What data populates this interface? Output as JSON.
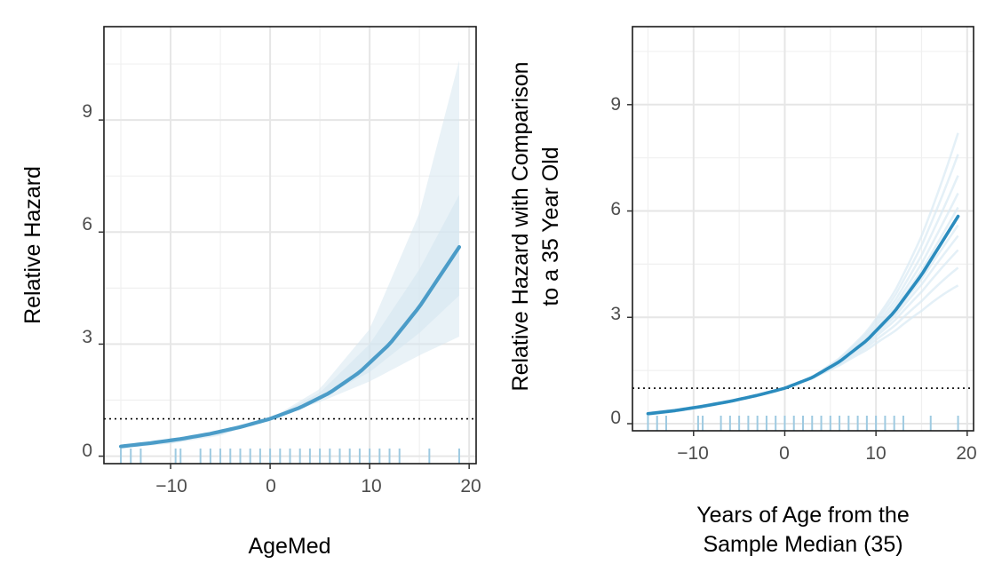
{
  "chart_data": [
    {
      "type": "line",
      "title": "",
      "xlabel": "AgeMed",
      "ylabel": "Relative Hazard",
      "xlim": [
        -16.7,
        20.7
      ],
      "ylim": [
        -0.2,
        11.5
      ],
      "xticks": [
        -10,
        0,
        10,
        20
      ],
      "yticks": [
        0,
        3,
        6,
        9
      ],
      "xtick_labels": [
        "−10",
        "0",
        "10",
        "20"
      ],
      "ytick_labels": [
        "0",
        "3",
        "6",
        "9"
      ],
      "reference_line": {
        "y": 1,
        "style": "dotted"
      },
      "grid": true,
      "series": [
        {
          "x": [
            -15,
            -12,
            -9,
            -6,
            -3,
            0,
            3,
            6,
            9,
            12,
            15,
            19
          ],
          "values": [
            0.26,
            0.35,
            0.46,
            0.6,
            0.78,
            1.0,
            1.3,
            1.7,
            2.25,
            3.0,
            4.0,
            5.6
          ]
        }
      ],
      "confidence_bands": [
        {
          "x": [
            -15,
            -10,
            -5,
            0,
            5,
            10,
            15,
            19
          ],
          "lower": [
            0.22,
            0.33,
            0.55,
            1.0,
            1.45,
            2.0,
            2.7,
            3.2
          ],
          "upper": [
            0.3,
            0.44,
            0.69,
            1.0,
            1.8,
            3.4,
            6.5,
            10.6
          ]
        },
        {
          "x": [
            -15,
            -10,
            -5,
            0,
            5,
            10,
            15,
            19
          ],
          "lower": [
            0.24,
            0.35,
            0.58,
            1.0,
            1.55,
            2.25,
            3.3,
            4.3
          ],
          "upper": [
            0.28,
            0.41,
            0.65,
            1.0,
            1.7,
            3.0,
            5.0,
            7.0
          ]
        }
      ],
      "rug": [
        -15,
        -14,
        -13,
        -9.5,
        -9,
        -7,
        -6,
        -5,
        -4,
        -3,
        -2,
        -1,
        0,
        1,
        2,
        3,
        4,
        5,
        6,
        7,
        8,
        9,
        10,
        11,
        12,
        13,
        16,
        19
      ],
      "colors": {
        "line": "#4b9cc8",
        "band": "#d3e6f0",
        "rug": "#9ecae1",
        "reference": "#000000"
      }
    },
    {
      "type": "line",
      "title": "",
      "xlabel": [
        "Years of Age from the",
        "Sample Median (35)"
      ],
      "ylabel": [
        "Relative Hazard with Comparison",
        "to a 35 Year Old"
      ],
      "xlim": [
        -16.7,
        20.7
      ],
      "ylim": [
        -0.2,
        11.2
      ],
      "xticks": [
        -10,
        0,
        10,
        20
      ],
      "yticks": [
        0,
        3,
        6,
        9
      ],
      "xtick_labels": [
        "−10",
        "0",
        "10",
        "20"
      ],
      "ytick_labels": [
        "0",
        "3",
        "6",
        "9"
      ],
      "reference_line": {
        "y": 1,
        "style": "dotted"
      },
      "grid": true,
      "series": [
        {
          "x": [
            -15,
            -12,
            -9,
            -6,
            -3,
            0,
            3,
            6,
            9,
            12,
            15,
            19
          ],
          "values": [
            0.28,
            0.37,
            0.49,
            0.63,
            0.8,
            1.0,
            1.3,
            1.75,
            2.35,
            3.15,
            4.2,
            5.85
          ]
        }
      ],
      "spaghetti_final_values": [
        3.9,
        4.4,
        4.9,
        5.3,
        5.6,
        6.1,
        6.5,
        7.0,
        7.6,
        8.2
      ],
      "rug": [
        -15,
        -14,
        -13,
        -9.5,
        -9,
        -7,
        -6,
        -5,
        -4,
        -3,
        -2,
        -1,
        0,
        1,
        2,
        3,
        4,
        5,
        6,
        7,
        8,
        9,
        10,
        11,
        12,
        13,
        16,
        19
      ],
      "colors": {
        "line": "#2b8cbe",
        "band": "#d9e9f3",
        "rug": "#9ecae1",
        "reference": "#000000"
      }
    }
  ]
}
